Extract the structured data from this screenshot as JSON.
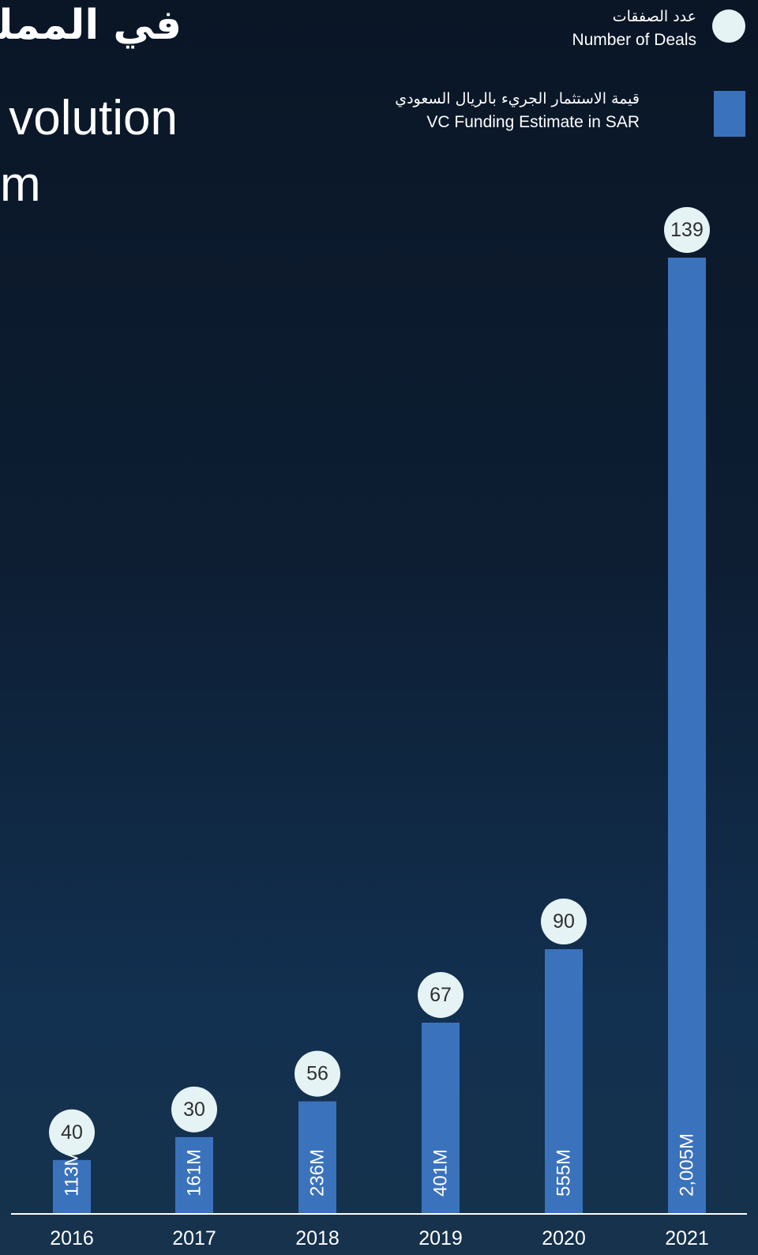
{
  "header": {
    "title_ar_fragment": "في المملكة",
    "title_en_line1": "volution",
    "title_en_line2": "m"
  },
  "legend": {
    "deals_ar": "عدد الصفقات",
    "deals_en": "Number of Deals",
    "vc_ar": "قيمة الاستثمار الجريء بالريال السعودي",
    "vc_en": "VC Funding Estimate in SAR"
  },
  "colors": {
    "bar": "#3b72bc",
    "deal_circle": "#e6f3f5",
    "axis": "#ffffff"
  },
  "chart_data": {
    "type": "bar",
    "categories": [
      "2016",
      "2017",
      "2018",
      "2019",
      "2020",
      "2021"
    ],
    "series": [
      {
        "name": "VC Funding Estimate in SAR",
        "values": [
          113,
          161,
          236,
          401,
          555,
          2005
        ],
        "labels": [
          "113M",
          "161M",
          "236M",
          "401M",
          "555M",
          "2,005M"
        ]
      },
      {
        "name": "Number of Deals",
        "values": [
          40,
          30,
          56,
          67,
          90,
          139
        ]
      }
    ],
    "ylim": [
      0,
      2005
    ],
    "grid": false,
    "legend_position": "top-right"
  }
}
